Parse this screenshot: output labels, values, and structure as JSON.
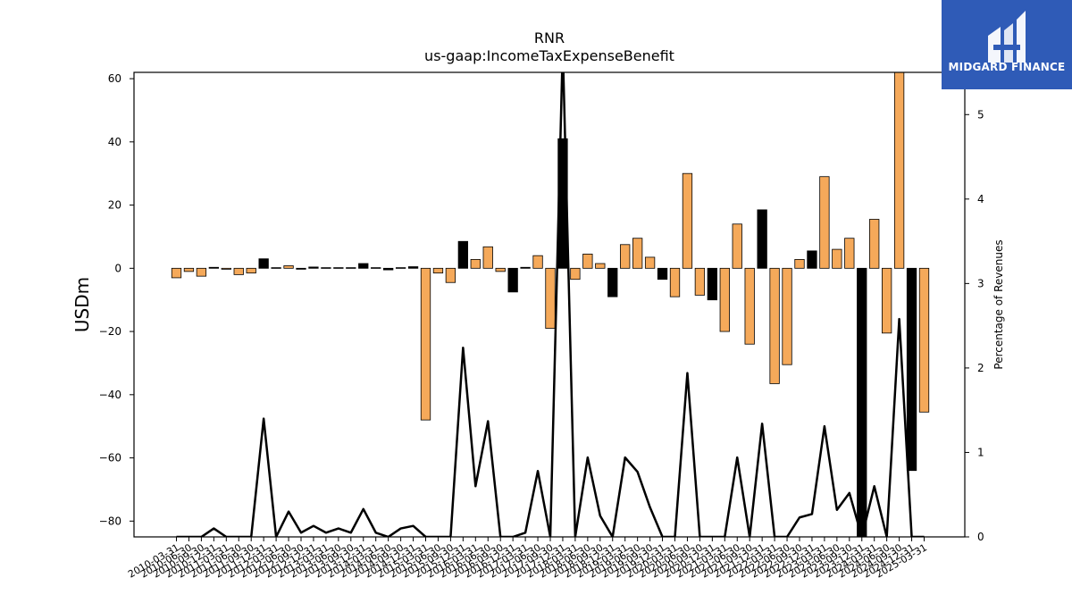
{
  "chart_data": {
    "type": "bar",
    "title": "RNR",
    "subtitle": "us-gaap:IncomeTaxExpenseBenefit",
    "ylabel": "USDm",
    "y2label": "Percentage of Revenues",
    "ylim": [
      -85,
      62
    ],
    "y2lim": [
      0,
      5.5
    ],
    "yticks": [
      -80,
      -60,
      -40,
      -20,
      0,
      20,
      40,
      60
    ],
    "y2ticks": [
      0,
      1,
      2,
      3,
      4,
      5
    ],
    "colors": {
      "positive_fill": "#f5a95a",
      "negative_fill": "#000000",
      "edge": "#000000",
      "line": "#000000"
    },
    "xticklabels": [
      "2010-03-31",
      "2010-06-30",
      "2010-09-30",
      "2010-12-31",
      "2011-03-31",
      "2011-06-30",
      "2011-09-30",
      "2011-12-31",
      "2012-03-31",
      "2012-06-30",
      "2012-09-30",
      "2012-12-31",
      "2013-03-31",
      "2013-06-30",
      "2013-09-30",
      "2013-12-31",
      "2014-03-31",
      "2014-06-30",
      "2014-09-30",
      "2014-12-31",
      "2015-03-31",
      "2015-06-30",
      "2015-09-30",
      "2015-12-31",
      "2016-03-31",
      "2016-06-30",
      "2016-09-30",
      "2016-12-31",
      "2017-03-31",
      "2017-06-30",
      "2017-09-30",
      "2017-12-31",
      "2018-03-31",
      "2018-06-30",
      "2018-09-30",
      "2018-12-31",
      "2019-03-31",
      "2019-06-30",
      "2019-09-30",
      "2019-12-31",
      "2020-03-31",
      "2020-06-30",
      "2020-09-30",
      "2020-12-31",
      "2021-03-31",
      "2021-06-30",
      "2021-09-30",
      "2021-12-31",
      "2022-03-31",
      "2022-06-30",
      "2022-09-30",
      "2022-12-31",
      "2023-03-31",
      "2023-06-30",
      "2023-09-30",
      "2023-12-31",
      "2024-03-31",
      "2024-06-30",
      "2024-09-30",
      "2024-12-31",
      "2025-03-31"
    ],
    "bars": [
      {
        "v": -3,
        "neg": false
      },
      {
        "v": -1,
        "neg": false
      },
      {
        "v": -2.5,
        "neg": false
      },
      {
        "v": 0.3,
        "neg": true
      },
      {
        "v": -0.3,
        "neg": false
      },
      {
        "v": -2,
        "neg": false
      },
      {
        "v": -1.5,
        "neg": false
      },
      {
        "v": 3,
        "neg": true
      },
      {
        "v": 0.2,
        "neg": false
      },
      {
        "v": 0.8,
        "neg": false
      },
      {
        "v": -0.3,
        "neg": true
      },
      {
        "v": 0.4,
        "neg": true
      },
      {
        "v": 0.2,
        "neg": true
      },
      {
        "v": 0.2,
        "neg": true
      },
      {
        "v": 0.2,
        "neg": true
      },
      {
        "v": 1.5,
        "neg": true
      },
      {
        "v": 0.2,
        "neg": true
      },
      {
        "v": -0.5,
        "neg": true
      },
      {
        "v": 0.2,
        "neg": true
      },
      {
        "v": 0.5,
        "neg": true
      },
      {
        "v": -48,
        "neg": false
      },
      {
        "v": -1.5,
        "neg": false
      },
      {
        "v": -4.5,
        "neg": false
      },
      {
        "v": 8.5,
        "neg": true
      },
      {
        "v": 2.8,
        "neg": false
      },
      {
        "v": 6.8,
        "neg": false
      },
      {
        "v": -1,
        "neg": false
      },
      {
        "v": -7.5,
        "neg": true
      },
      {
        "v": 0.3,
        "neg": true
      },
      {
        "v": 4,
        "neg": false
      },
      {
        "v": -19,
        "neg": false
      },
      {
        "v": 41,
        "neg": true
      },
      {
        "v": -3.5,
        "neg": false
      },
      {
        "v": 4.5,
        "neg": false
      },
      {
        "v": 1.5,
        "neg": false
      },
      {
        "v": -9,
        "neg": true
      },
      {
        "v": 7.5,
        "neg": false
      },
      {
        "v": 9.5,
        "neg": false
      },
      {
        "v": 3.5,
        "neg": false
      },
      {
        "v": -3.5,
        "neg": true
      },
      {
        "v": -9,
        "neg": false
      },
      {
        "v": 30,
        "neg": false
      },
      {
        "v": -8.5,
        "neg": false
      },
      {
        "v": -10,
        "neg": true
      },
      {
        "v": -20,
        "neg": false
      },
      {
        "v": 14,
        "neg": false
      },
      {
        "v": -24,
        "neg": false
      },
      {
        "v": 18.5,
        "neg": true
      },
      {
        "v": -36.5,
        "neg": false
      },
      {
        "v": -30.5,
        "neg": false
      },
      {
        "v": 2.8,
        "neg": false
      },
      {
        "v": 5.5,
        "neg": true
      },
      {
        "v": 29,
        "neg": false
      },
      {
        "v": 6,
        "neg": false
      },
      {
        "v": 9.5,
        "neg": false
      },
      {
        "v": -85,
        "neg": true
      },
      {
        "v": 15.5,
        "neg": false
      },
      {
        "v": -20.5,
        "neg": false
      },
      {
        "v": 62,
        "neg": false
      },
      {
        "v": -64,
        "neg": true
      },
      {
        "v": -45.5,
        "neg": false
      }
    ],
    "pct_line": [
      0,
      0,
      0,
      0.1,
      0,
      0,
      0,
      1.4,
      0,
      0.3,
      0.05,
      0.13,
      0.05,
      0.1,
      0.05,
      0.33,
      0.05,
      0,
      0.1,
      0.13,
      0,
      0,
      0,
      2.24,
      0.6,
      1.37,
      0,
      0,
      0.05,
      0.78,
      0,
      5.8,
      0,
      0.94,
      0.25,
      0,
      0.94,
      0.77,
      0.35,
      0,
      0,
      1.94,
      0,
      0,
      0,
      0.94,
      0,
      1.34,
      0,
      0,
      0.23,
      0.27,
      1.31,
      0.32,
      0.52,
      0,
      0.6,
      0,
      2.58,
      0,
      0
    ],
    "grid": false,
    "legend": "none"
  },
  "logo": {
    "text": "MIDGARD FINANCE",
    "bg": "#2f5bb7"
  }
}
